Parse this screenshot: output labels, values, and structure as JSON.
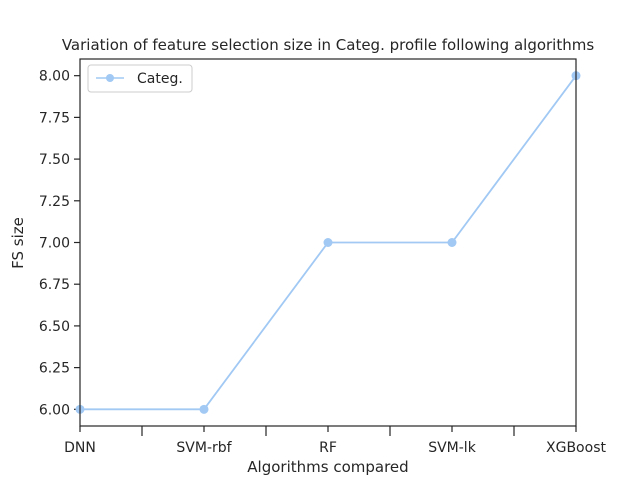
{
  "chart_data": {
    "type": "line",
    "title": "Variation of feature selection size in Categ. profile following algorithms",
    "xlabel": "Algorithms compared",
    "ylabel": "FS size",
    "categories": [
      "DNN",
      "SVM-rbf",
      "RF",
      "SVM-lk",
      "XGBoost"
    ],
    "series": [
      {
        "name": "Categ.",
        "values": [
          6,
          6,
          7,
          7,
          8
        ],
        "color": "#a1c9f4",
        "marker": "circle"
      }
    ],
    "ylim": [
      5.9,
      8.1
    ],
    "yticks": [
      6.0,
      6.25,
      6.5,
      6.75,
      7.0,
      7.25,
      7.5,
      7.75,
      8.0
    ],
    "ytick_labels": [
      "6.00",
      "6.25",
      "6.50",
      "6.75",
      "7.00",
      "7.25",
      "7.50",
      "7.75",
      "8.00"
    ],
    "grid": false,
    "legend_position": "upper-left"
  }
}
